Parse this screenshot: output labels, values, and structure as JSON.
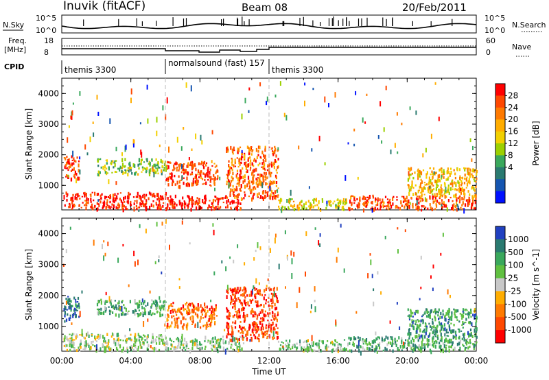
{
  "header": {
    "station": "Inuvik (fitACF)",
    "beam": "Beam 08",
    "date": "20/Feb/2011"
  },
  "top_panels": {
    "nsky_label": "N.Sky",
    "nsky_ticks": [
      "10^5",
      "10^0"
    ],
    "nsearch_label": "N.Search",
    "nsearch_ticks": [
      "10^5",
      "10^0"
    ],
    "freq_label": "Freq.",
    "freq_unit": "[MHz]",
    "freq_ticks": [
      "18",
      "8"
    ],
    "nave_label": "Nave",
    "nave_ticks": [
      "60",
      "0"
    ],
    "cpid_label": "CPID",
    "cpid_segments": [
      {
        "label": "themis 3300",
        "start_hr": 0,
        "end_hr": 6
      },
      {
        "label": "normalsound (fast) 157",
        "start_hr": 6,
        "end_hr": 12
      },
      {
        "label": "themis 3300",
        "start_hr": 12,
        "end_hr": 24
      }
    ]
  },
  "chart_data": [
    {
      "type": "heatmap",
      "title": "",
      "xlabel": "",
      "ylabel": "Slant Range [km]",
      "ylim": [
        200,
        4500
      ],
      "xlim_hr": [
        0,
        24
      ],
      "x_ticks": [
        "00:00",
        "04:00",
        "08:00",
        "12:00",
        "16:00",
        "20:00",
        "00:00"
      ],
      "y_ticks": [
        "1000",
        "2000",
        "3000",
        "4000"
      ],
      "colorbar": {
        "label": "Power [dB]",
        "ticks": [
          "28",
          "24",
          "20",
          "16",
          "12",
          "8",
          "4"
        ],
        "colors": [
          "#ff0000",
          "#ff4800",
          "#ff7a00",
          "#ffad00",
          "#f2d000",
          "#9cd000",
          "#3aa85c",
          "#2a7a70",
          "#1555b0",
          "#0010ff"
        ]
      },
      "bands": [
        {
          "start_hr": 0.1,
          "end_hr": 6,
          "r_min": 250,
          "r_max": 800,
          "level": 0.95
        },
        {
          "start_hr": 6,
          "end_hr": 10.5,
          "r_min": 250,
          "r_max": 700,
          "level": 0.95
        },
        {
          "start_hr": 0.1,
          "end_hr": 1,
          "r_min": 1200,
          "r_max": 2000,
          "level": 0.9
        },
        {
          "start_hr": 6,
          "end_hr": 9,
          "r_min": 1000,
          "r_max": 1800,
          "level": 0.85
        },
        {
          "start_hr": 9.5,
          "end_hr": 12.5,
          "r_min": 600,
          "r_max": 2300,
          "level": 0.8
        },
        {
          "start_hr": 12.5,
          "end_hr": 16.5,
          "r_min": 250,
          "r_max": 600,
          "level": 0.55
        },
        {
          "start_hr": 16.5,
          "end_hr": 24,
          "r_min": 250,
          "r_max": 700,
          "level": 0.85
        },
        {
          "start_hr": 20,
          "end_hr": 24,
          "r_min": 700,
          "r_max": 1600,
          "level": 0.6
        },
        {
          "start_hr": 2,
          "end_hr": 6,
          "r_min": 1400,
          "r_max": 1900,
          "level": 0.45
        }
      ]
    },
    {
      "type": "heatmap",
      "title": "",
      "xlabel": "Time UT",
      "ylabel": "Slant Range [km]",
      "ylim": [
        200,
        4500
      ],
      "xlim_hr": [
        0,
        24
      ],
      "x_ticks": [
        "00:00",
        "04:00",
        "08:00",
        "12:00",
        "16:00",
        "20:00",
        "00:00"
      ],
      "y_ticks": [
        "1000",
        "2000",
        "3000",
        "4000"
      ],
      "colorbar": {
        "label": "Velocity [m s^-1]",
        "ticks": [
          "1000",
          "500",
          "100",
          "25",
          "-25",
          "-100",
          "-500",
          "-1000"
        ],
        "colors": [
          "#2040c0",
          "#2a7a70",
          "#3aa85c",
          "#60c040",
          "#c8c8c8",
          "#ffad00",
          "#ff7a00",
          "#ff4800",
          "#ff0000"
        ]
      },
      "bands": [
        {
          "start_hr": 0.1,
          "end_hr": 6,
          "r_min": 250,
          "r_max": 800,
          "level": 0.55
        },
        {
          "start_hr": 6,
          "end_hr": 10.5,
          "r_min": 250,
          "r_max": 700,
          "level": 0.6
        },
        {
          "start_hr": 0.1,
          "end_hr": 1,
          "r_min": 1200,
          "r_max": 2000,
          "level": 0.9
        },
        {
          "start_hr": 6,
          "end_hr": 9,
          "r_min": 1000,
          "r_max": 1800,
          "level": 0.25
        },
        {
          "start_hr": 9.5,
          "end_hr": 12.5,
          "r_min": 600,
          "r_max": 2300,
          "level": 0.15
        },
        {
          "start_hr": 12.5,
          "end_hr": 16.5,
          "r_min": 250,
          "r_max": 600,
          "level": 0.6
        },
        {
          "start_hr": 16.5,
          "end_hr": 24,
          "r_min": 250,
          "r_max": 700,
          "level": 0.7
        },
        {
          "start_hr": 20,
          "end_hr": 24,
          "r_min": 700,
          "r_max": 1600,
          "level": 0.75
        },
        {
          "start_hr": 2,
          "end_hr": 6,
          "r_min": 1400,
          "r_max": 1900,
          "level": 0.7
        }
      ]
    }
  ]
}
